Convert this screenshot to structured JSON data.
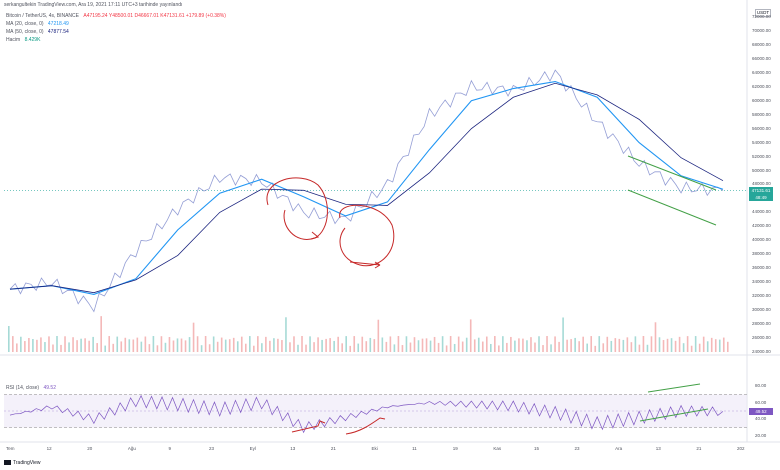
{
  "header": {
    "author_line": "serkangultekin TradingView.com, Ara 19, 2021 17:11 UTC+3 tarihinde yayınlandı",
    "currency": "USDT"
  },
  "legend": {
    "main": {
      "symbol": "Bitcoin / TetherUS, 4s, BINANCE",
      "ohlc": "A47195.24  Y48500.01  D46667.01  K47131.61  +179.89 (+0.38%)"
    },
    "ma20": {
      "label": "MA (20, close, 0)",
      "value": "47218.49",
      "color": "#2196f3"
    },
    "ma50": {
      "label": "MA (50, close, 0)",
      "value": "47877.54",
      "color": "#1a237e"
    },
    "volume": {
      "label": "Hacim",
      "value": "8.429K",
      "color": "#089981"
    },
    "rsi": {
      "label": "RSI (14, close)",
      "value": "49.52",
      "color": "#7e57c2"
    }
  },
  "price_axis": {
    "labels": [
      "72000.00",
      "70000.00",
      "68000.00",
      "66000.00",
      "64000.00",
      "62000.00",
      "60000.00",
      "58000.00",
      "56000.00",
      "54000.00",
      "52000.00",
      "50000.00",
      "48000.00",
      "44000.00",
      "42000.00",
      "40000.00",
      "38000.00",
      "36000.00",
      "34000.00",
      "32000.00",
      "30000.00",
      "28000.00",
      "26000.00",
      "24000.00"
    ],
    "current_price": "47131.61",
    "countdown": "48:49",
    "current_color": "#26a69a"
  },
  "rsi_axis": {
    "labels": [
      "80.00",
      "60.00",
      "40.00",
      "20.00"
    ],
    "current": "49.52"
  },
  "time_axis": {
    "labels": [
      "Tem",
      "12",
      "20",
      "Ağu",
      "9",
      "23",
      "Eyl",
      "13",
      "21",
      "Eki",
      "11",
      "19",
      "Kas",
      "15",
      "23",
      "Ara",
      "13",
      "21",
      "202"
    ]
  },
  "footer": {
    "brand": "TradingView"
  },
  "chart_data": {
    "type": "line",
    "title": "",
    "xlabel": "",
    "ylabel": "",
    "ylim": [
      24000,
      73000
    ],
    "x": [
      "Tem",
      "12",
      "20",
      "Ağu",
      "9",
      "23",
      "Eyl",
      "13",
      "21",
      "Eki",
      "11",
      "19",
      "Kas",
      "15",
      "23",
      "Ara",
      "13",
      "21"
    ],
    "series": [
      {
        "values": [
          33000,
          34000,
          30500,
          38500,
          44500,
          49000,
          48500,
          44000,
          43000,
          48000,
          58000,
          62000,
          61500,
          64000,
          57000,
          51000,
          47500,
          47131
        ]
      }
    ],
    "rsi_ylim": [
      15,
      85
    ],
    "rsi_levels": [
      70,
      30
    ],
    "rsi_series": [
      45,
      55,
      40,
      62,
      58,
      52,
      60,
      30,
      42,
      55,
      60,
      58,
      56,
      48,
      35,
      42,
      50,
      49.52
    ],
    "colors": {
      "price_line": "#5b5bd6",
      "ma20": "#2196f3",
      "ma50": "#1a237e",
      "rsi": "#7e57c2",
      "annotation_red": "#c62828",
      "channel_green": "#43a047"
    }
  }
}
